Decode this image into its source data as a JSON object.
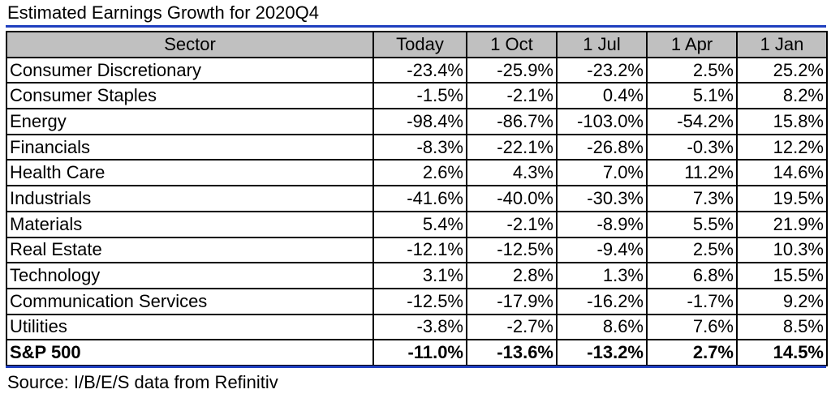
{
  "title": "Estimated Earnings Growth for 2020Q4",
  "source": "Source: I/B/E/S data from Refinitiv",
  "chart_data": {
    "type": "table",
    "title": "Estimated Earnings Growth for 2020Q4",
    "columns": [
      "Sector",
      "Today",
      "1 Oct",
      "1 Jul",
      "1 Apr",
      "1 Jan"
    ],
    "rows": [
      {
        "sector": "Consumer Discretionary",
        "values": [
          "-23.4%",
          "-25.9%",
          "-23.2%",
          "2.5%",
          "25.2%"
        ]
      },
      {
        "sector": "Consumer Staples",
        "values": [
          "-1.5%",
          "-2.1%",
          "0.4%",
          "5.1%",
          "8.2%"
        ]
      },
      {
        "sector": "Energy",
        "values": [
          "-98.4%",
          "-86.7%",
          "-103.0%",
          "-54.2%",
          "15.8%"
        ]
      },
      {
        "sector": "Financials",
        "values": [
          "-8.3%",
          "-22.1%",
          "-26.8%",
          "-0.3%",
          "12.2%"
        ]
      },
      {
        "sector": "Health Care",
        "values": [
          "2.6%",
          "4.3%",
          "7.0%",
          "11.2%",
          "14.6%"
        ]
      },
      {
        "sector": "Industrials",
        "values": [
          "-41.6%",
          "-40.0%",
          "-30.3%",
          "7.3%",
          "19.5%"
        ]
      },
      {
        "sector": "Materials",
        "values": [
          "5.4%",
          "-2.1%",
          "-8.9%",
          "5.5%",
          "21.9%"
        ]
      },
      {
        "sector": "Real Estate",
        "values": [
          "-12.1%",
          "-12.5%",
          "-9.4%",
          "2.5%",
          "10.3%"
        ]
      },
      {
        "sector": "Technology",
        "values": [
          "3.1%",
          "2.8%",
          "1.3%",
          "6.8%",
          "15.5%"
        ]
      },
      {
        "sector": "Communication Services",
        "values": [
          "-12.5%",
          "-17.9%",
          "-16.2%",
          "-1.7%",
          "9.2%"
        ]
      },
      {
        "sector": "Utilities",
        "values": [
          "-3.8%",
          "-2.7%",
          "8.6%",
          "7.6%",
          "8.5%"
        ]
      }
    ],
    "total": {
      "sector": "S&P 500",
      "values": [
        "-11.0%",
        "-13.6%",
        "-13.2%",
        "2.7%",
        "14.5%"
      ]
    }
  },
  "colors": {
    "header_bg": "#c0c0c0",
    "rule": "#1f3fbf"
  }
}
